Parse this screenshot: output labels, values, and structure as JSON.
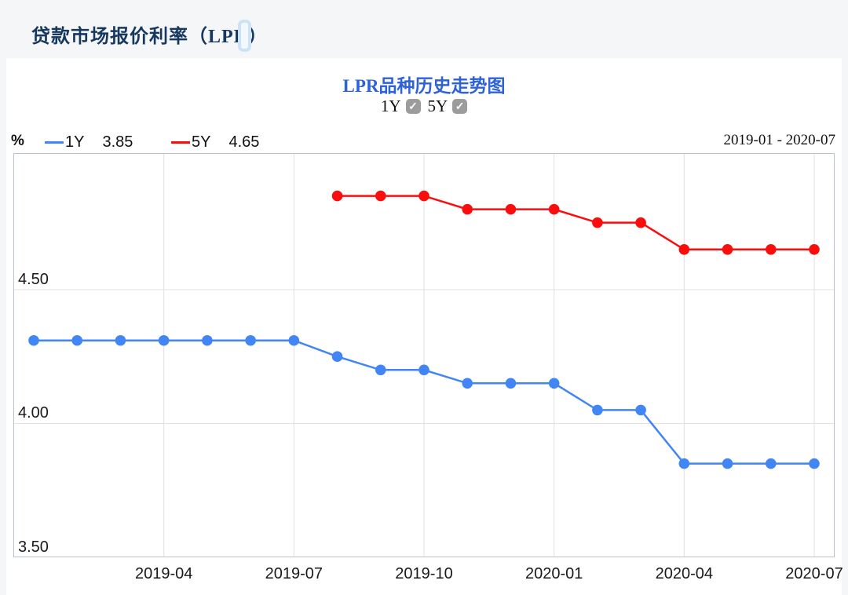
{
  "header": {
    "title": "贷款市场报价利率（LPR）"
  },
  "chart": {
    "title": "LPR品种历史走势图",
    "check_glyph": "✓",
    "toggles": [
      {
        "label": "1Y",
        "checked": true
      },
      {
        "label": "5Y",
        "checked": true
      }
    ],
    "legend": {
      "unit": "%",
      "items": [
        {
          "label": "1Y",
          "value": "3.85",
          "color": "#4285f4"
        },
        {
          "label": "5Y",
          "value": "4.65",
          "color": "#fb0d0d"
        }
      ]
    },
    "date_range": "2019-01 - 2020-07"
  },
  "chart_data": {
    "type": "line",
    "x": [
      "2019-01",
      "2019-02",
      "2019-03",
      "2019-04",
      "2019-05",
      "2019-06",
      "2019-07",
      "2019-08",
      "2019-09",
      "2019-10",
      "2019-11",
      "2019-12",
      "2020-01",
      "2020-02",
      "2020-03",
      "2020-04",
      "2020-05",
      "2020-06",
      "2020-07"
    ],
    "series": [
      {
        "name": "1Y",
        "color": "#4285f4",
        "values": [
          4.31,
          4.31,
          4.31,
          4.31,
          4.31,
          4.31,
          4.31,
          4.25,
          4.2,
          4.2,
          4.15,
          4.15,
          4.15,
          4.05,
          4.05,
          3.85,
          3.85,
          3.85,
          3.85
        ]
      },
      {
        "name": "5Y",
        "color": "#fb0d0d",
        "values": [
          null,
          null,
          null,
          null,
          null,
          null,
          null,
          4.85,
          4.85,
          4.85,
          4.8,
          4.8,
          4.8,
          4.75,
          4.75,
          4.65,
          4.65,
          4.65,
          4.65
        ]
      }
    ],
    "ylim": [
      3.5,
      5.01
    ],
    "yticks": [
      "3.50",
      "4.00",
      "4.50"
    ],
    "ytick_values": [
      3.5,
      4.0,
      4.5
    ],
    "xticks": [
      "2019-04",
      "2019-07",
      "2019-10",
      "2020-01",
      "2020-04",
      "2020-07"
    ],
    "grid": true,
    "legend_position": "top-left",
    "colors": {
      "grid": "#e0e0e0",
      "border": "#b9c2d0",
      "title": "#2d62d8"
    }
  }
}
